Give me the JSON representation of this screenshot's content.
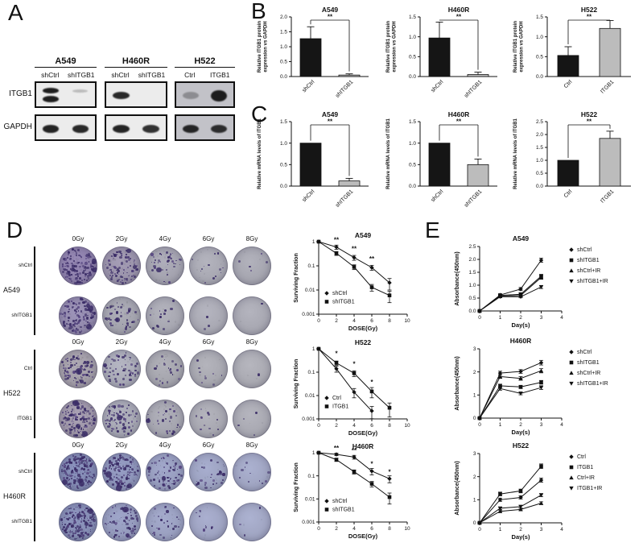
{
  "panels": {
    "a": "A",
    "b": "B",
    "c": "C",
    "d": "D",
    "e": "E"
  },
  "panel_a": {
    "row_labels": [
      "ITGB1",
      "GAPDH"
    ],
    "cell_lines": [
      {
        "name": "A549",
        "lanes": [
          "shCtrl",
          "shITGB1"
        ],
        "blot_bg": "#ececec",
        "itgb1_bands": [
          {
            "intensity": 0.95,
            "style": "double"
          },
          {
            "intensity": 0.22,
            "style": "thin"
          }
        ],
        "gapdh_bands": [
          {
            "intensity": 0.92
          },
          {
            "intensity": 0.9
          }
        ]
      },
      {
        "name": "H460R",
        "lanes": [
          "shCtrl",
          "shITGB1"
        ],
        "blot_bg": "#ececec",
        "itgb1_bands": [
          {
            "intensity": 0.9
          },
          {
            "intensity": 0.0
          }
        ],
        "gapdh_bands": [
          {
            "intensity": 0.92
          },
          {
            "intensity": 0.86
          }
        ]
      },
      {
        "name": "H522",
        "lanes": [
          "Ctrl",
          "ITGB1"
        ],
        "blot_bg": "#c2c2c8",
        "itgb1_bands": [
          {
            "intensity": 0.3
          },
          {
            "intensity": 0.95,
            "style": "thick"
          }
        ],
        "gapdh_bands": [
          {
            "intensity": 0.9
          },
          {
            "intensity": 0.86
          }
        ]
      }
    ]
  },
  "colony": {
    "dose_labels": [
      "0Gy",
      "2Gy",
      "4Gy",
      "6Gy",
      "8Gy"
    ],
    "colony_color": "#3a2c66",
    "groups": [
      {
        "cell_line": "A549",
        "rows": [
          {
            "label": "shCtrl",
            "base_colors": [
              "#8e81ab",
              "#9a93aa",
              "#a4a3af",
              "#a8a8b2",
              "#a6a6b0"
            ],
            "colony_counts": [
              130,
              85,
              40,
              14,
              5
            ]
          },
          {
            "label": "shITGB1",
            "base_colors": [
              "#938aad",
              "#a3a3ad",
              "#a7a7b1",
              "#a9a9b3",
              "#a8a8b2"
            ],
            "colony_counts": [
              110,
              45,
              14,
              3,
              1
            ]
          }
        ]
      },
      {
        "cell_line": "H522",
        "rows": [
          {
            "label": "Ctrl",
            "base_colors": [
              "#a39ea8",
              "#a9aab6",
              "#a5a5ad",
              "#a8a8b0",
              "#aaaab2"
            ],
            "colony_counts": [
              90,
              55,
              22,
              9,
              2
            ]
          },
          {
            "label": "ITGB1",
            "base_colors": [
              "#9f97a9",
              "#a6a7b3",
              "#a5a5af",
              "#a8a8b1",
              "#a9a9b2"
            ],
            "colony_counts": [
              120,
              70,
              30,
              12,
              4
            ]
          }
        ]
      },
      {
        "cell_line": "H460R",
        "rows": [
          {
            "label": "shCtrl",
            "base_colors": [
              "#8289b2",
              "#8d94b9",
              "#979dbe",
              "#9da3c1",
              "#a0a5c2"
            ],
            "colony_counts": [
              160,
              110,
              65,
              28,
              10
            ]
          },
          {
            "label": "shITGB1",
            "base_colors": [
              "#868db4",
              "#959bbd",
              "#9aa0c0",
              "#9fa4c2",
              "#a1a6c3"
            ],
            "colony_counts": [
              140,
              70,
              28,
              9,
              3
            ]
          }
        ]
      }
    ]
  },
  "chart_data": [
    {
      "id": "b-a549",
      "type": "bar",
      "title": "A549",
      "ylabel": [
        "Relative ITGB1 protein",
        "expression vs GAPDH"
      ],
      "ylim": [
        0,
        2.0
      ],
      "yticks": [
        0,
        0.5,
        1.0,
        1.5,
        2.0
      ],
      "ytick_labels": [
        "0.0",
        "0.5",
        "1.0",
        "1.5",
        "2.0"
      ],
      "categories": [
        "shCtrl",
        "shITGB1"
      ],
      "values": [
        1.27,
        0.05
      ],
      "errors": [
        0.4,
        0.04
      ],
      "bar_colors": [
        "#151515",
        "#bcbcbc"
      ],
      "sig": "**"
    },
    {
      "id": "b-h460r",
      "type": "bar",
      "title": "H460R",
      "ylabel": [
        "Relative ITGB1 protein",
        "expression vs GAPDH"
      ],
      "ylim": [
        0,
        1.5
      ],
      "yticks": [
        0,
        0.5,
        1.0,
        1.5
      ],
      "ytick_labels": [
        "0.0",
        "0.5",
        "1.0",
        "1.5"
      ],
      "categories": [
        "shCtrl",
        "shITGB1"
      ],
      "values": [
        0.97,
        0.05
      ],
      "errors": [
        0.4,
        0.06
      ],
      "bar_colors": [
        "#151515",
        "#bcbcbc"
      ],
      "sig": "**"
    },
    {
      "id": "b-h522",
      "type": "bar",
      "title": "H522",
      "ylabel": [
        "Relative ITGB1 protein",
        "expression vs GAPDH"
      ],
      "ylim": [
        0,
        1.5
      ],
      "yticks": [
        0,
        0.5,
        1.0,
        1.5
      ],
      "ytick_labels": [
        "0.0",
        "0.5",
        "1.0",
        "1.5"
      ],
      "categories": [
        "Ctrl",
        "ITGB1"
      ],
      "values": [
        0.53,
        1.21
      ],
      "errors": [
        0.22,
        0.2
      ],
      "bar_colors": [
        "#151515",
        "#bcbcbc"
      ],
      "sig": "**"
    },
    {
      "id": "c-a549",
      "type": "bar",
      "title": "A549",
      "ylabel": [
        "Relative mRNA levels of ITGB1"
      ],
      "ylim": [
        0,
        1.5
      ],
      "yticks": [
        0,
        0.5,
        1.0,
        1.5
      ],
      "ytick_labels": [
        "0.0",
        "0.5",
        "1.0",
        "1.5"
      ],
      "categories": [
        "shCtrl",
        "shITGB1"
      ],
      "values": [
        1.0,
        0.12
      ],
      "errors": [
        0,
        0.06
      ],
      "bar_colors": [
        "#151515",
        "#bcbcbc"
      ],
      "sig": "**"
    },
    {
      "id": "c-h460r",
      "type": "bar",
      "title": "H460R",
      "ylabel": [
        "Relative mRNA levels of ITGB1"
      ],
      "ylim": [
        0,
        1.5
      ],
      "yticks": [
        0,
        0.5,
        1.0,
        1.5
      ],
      "ytick_labels": [
        "0.0",
        "0.5",
        "1.0",
        "1.5"
      ],
      "categories": [
        "shCtrl",
        "shITGB1"
      ],
      "values": [
        1.0,
        0.5
      ],
      "errors": [
        0,
        0.13
      ],
      "bar_colors": [
        "#151515",
        "#bcbcbc"
      ],
      "sig": "**"
    },
    {
      "id": "c-h522",
      "type": "bar",
      "title": "H522",
      "ylabel": [
        "Relative mRNA levels of ITGB1"
      ],
      "ylim": [
        0,
        2.5
      ],
      "yticks": [
        0,
        0.5,
        1.0,
        1.5,
        2.0,
        2.5
      ],
      "ytick_labels": [
        "0.0",
        "0.5",
        "1.0",
        "1.5",
        "2.0",
        "2.5"
      ],
      "categories": [
        "Ctrl",
        "ITGB1"
      ],
      "values": [
        1.0,
        1.85
      ],
      "errors": [
        0,
        0.28
      ],
      "bar_colors": [
        "#151515",
        "#bcbcbc"
      ],
      "sig": "**"
    },
    {
      "id": "d-a549",
      "type": "line",
      "title": "A549",
      "ylabel": "Surviving Fraction",
      "xlabel": "DOSE(Gy)",
      "ylog": true,
      "xlim": [
        0,
        10
      ],
      "xticks": [
        0,
        2,
        4,
        6,
        8,
        10
      ],
      "ylim": [
        0.001,
        1
      ],
      "yticks": [
        1,
        0.1,
        0.01,
        0.001
      ],
      "ytick_labels": [
        "1",
        "0.1",
        "0.01",
        "0.001"
      ],
      "x": [
        0,
        2,
        4,
        6,
        8
      ],
      "legend_pos": "inside",
      "series": [
        {
          "name": "shCtrl",
          "marker": "diamond",
          "values": [
            1,
            0.6,
            0.22,
            0.085,
            0.02
          ],
          "errors": [
            0,
            0.12,
            0.05,
            0.02,
            0.01
          ]
        },
        {
          "name": "shITGB1",
          "marker": "square",
          "values": [
            1,
            0.33,
            0.09,
            0.013,
            0.006
          ],
          "errors": [
            0,
            0.06,
            0.02,
            0.004,
            0.003
          ]
        }
      ],
      "sig": [
        {
          "x": 2,
          "y": 0.95,
          "label": "**"
        },
        {
          "x": 4,
          "y": 0.42,
          "label": "**"
        },
        {
          "x": 6,
          "y": 0.16,
          "label": "**"
        }
      ]
    },
    {
      "id": "d-h522",
      "type": "line",
      "title": "H522",
      "ylabel": "Surviving Fraction",
      "xlabel": "DOSE(Gy)",
      "ylog": true,
      "xlim": [
        0,
        10
      ],
      "xticks": [
        0,
        2,
        4,
        6,
        8,
        10
      ],
      "ylim": [
        0.001,
        1
      ],
      "yticks": [
        1,
        0.1,
        0.01,
        0.001
      ],
      "ytick_labels": [
        "1",
        "0.1",
        "0.01",
        "0.001"
      ],
      "x": [
        0,
        2,
        4,
        6,
        8
      ],
      "legend_pos": "inside",
      "series": [
        {
          "name": "Ctrl",
          "marker": "diamond",
          "values": [
            1,
            0.14,
            0.014,
            0.0022,
            null
          ],
          "errors": [
            0,
            0.04,
            0.006,
            0.0012,
            null
          ]
        },
        {
          "name": "ITGB1",
          "marker": "square",
          "values": [
            1,
            0.25,
            0.09,
            0.015,
            0.003
          ],
          "errors": [
            0,
            0.05,
            0.025,
            0.007,
            0.0018
          ]
        }
      ],
      "sig": [
        {
          "x": 2,
          "y": 0.5,
          "label": "*"
        },
        {
          "x": 4,
          "y": 0.18,
          "label": "*"
        },
        {
          "x": 6,
          "y": 0.03,
          "label": "*"
        }
      ]
    },
    {
      "id": "d-h460r",
      "type": "line",
      "title": "H460R",
      "ylabel": "Surviving Fraction",
      "xlabel": "DOSE(Gy)",
      "ylog": true,
      "xlim": [
        0,
        10
      ],
      "xticks": [
        0,
        2,
        4,
        6,
        8,
        10
      ],
      "ylim": [
        0.001,
        1
      ],
      "yticks": [
        1,
        0.1,
        0.01,
        0.001
      ],
      "ytick_labels": [
        "1",
        "0.1",
        "0.01",
        "0.001"
      ],
      "x": [
        0,
        2,
        4,
        6,
        8
      ],
      "legend_pos": "inside",
      "series": [
        {
          "name": "shCtrl",
          "marker": "diamond",
          "values": [
            1,
            0.85,
            0.65,
            0.16,
            0.075
          ],
          "errors": [
            0,
            0.1,
            0.12,
            0.05,
            0.025
          ]
        },
        {
          "name": "shITGB1",
          "marker": "square",
          "values": [
            1,
            0.5,
            0.15,
            0.045,
            0.012
          ],
          "errors": [
            0,
            0.08,
            0.03,
            0.012,
            0.006
          ]
        }
      ],
      "sig": [
        {
          "x": 2,
          "y": 1.25,
          "label": "**"
        },
        {
          "x": 4,
          "y": 1.0,
          "label": "**"
        },
        {
          "x": 6,
          "y": 0.27,
          "label": "*"
        },
        {
          "x": 8,
          "y": 0.12,
          "label": "*"
        }
      ]
    },
    {
      "id": "e-a549",
      "type": "line",
      "title": "A549",
      "ylabel": "Absorbance(450nm)",
      "xlabel": "Day(s)",
      "ylog": false,
      "xlim": [
        0,
        4
      ],
      "xticks": [
        0,
        1,
        2,
        3,
        4
      ],
      "ylim": [
        0,
        2.5
      ],
      "yticks": [
        0,
        0.5,
        1.0,
        1.5,
        2.0,
        2.5
      ],
      "ytick_labels": [
        "0.0",
        "0.5",
        "1.0",
        "1.5",
        "2.0",
        "2.5"
      ],
      "x": [
        0,
        1,
        2,
        3
      ],
      "legend_pos": "right",
      "series": [
        {
          "name": "shCtrl",
          "marker": "diamond",
          "values": [
            0,
            0.62,
            0.85,
            1.97
          ],
          "errors": [
            0,
            0.05,
            0.06,
            0.08
          ]
        },
        {
          "name": "shITGB1",
          "marker": "square",
          "values": [
            0,
            0.6,
            0.65,
            1.35
          ],
          "errors": [
            0,
            0.05,
            0.05,
            0.07
          ]
        },
        {
          "name": "shCtrl+IR",
          "marker": "tri-up",
          "values": [
            0,
            0.58,
            0.6,
            1.3
          ],
          "errors": [
            0,
            0.04,
            0.05,
            0.07
          ]
        },
        {
          "name": "shITGB1+IR",
          "marker": "tri-down",
          "values": [
            0,
            0.55,
            0.55,
            0.93
          ],
          "errors": [
            0,
            0.04,
            0.04,
            0.06
          ]
        }
      ],
      "sig": []
    },
    {
      "id": "e-h460r",
      "type": "line",
      "title": "H460R",
      "ylabel": "Absorbance(450nm)",
      "xlabel": "Day(s)",
      "ylog": false,
      "xlim": [
        0,
        4
      ],
      "xticks": [
        0,
        1,
        2,
        3,
        4
      ],
      "ylim": [
        0,
        3
      ],
      "yticks": [
        0,
        1,
        2,
        3
      ],
      "ytick_labels": [
        "0",
        "1",
        "2",
        "3"
      ],
      "x": [
        0,
        1,
        2,
        3
      ],
      "legend_pos": "right",
      "series": [
        {
          "name": "shCtrl",
          "marker": "diamond",
          "values": [
            0,
            1.95,
            2.02,
            2.4
          ],
          "errors": [
            0,
            0.08,
            0.08,
            0.1
          ]
        },
        {
          "name": "shITGB1",
          "marker": "square",
          "values": [
            0,
            1.4,
            1.35,
            1.55
          ],
          "errors": [
            0,
            0.07,
            0.07,
            0.08
          ]
        },
        {
          "name": "shCtrl+IR",
          "marker": "tri-up",
          "values": [
            0,
            1.8,
            1.72,
            2.05
          ],
          "errors": [
            0,
            0.08,
            0.08,
            0.09
          ]
        },
        {
          "name": "shITGB1+IR",
          "marker": "tri-down",
          "values": [
            0,
            1.28,
            1.07,
            1.32
          ],
          "errors": [
            0,
            0.07,
            0.06,
            0.08
          ]
        }
      ],
      "sig": []
    },
    {
      "id": "e-h522",
      "type": "line",
      "title": "H522",
      "ylabel": "Absorbance(450nm)",
      "xlabel": "Day(s)",
      "ylog": false,
      "xlim": [
        0,
        4
      ],
      "xticks": [
        0,
        1,
        2,
        3,
        4
      ],
      "ylim": [
        0,
        3
      ],
      "yticks": [
        0,
        1,
        2,
        3
      ],
      "ytick_labels": [
        "0",
        "1",
        "2",
        "3"
      ],
      "x": [
        0,
        1,
        2,
        3
      ],
      "legend_pos": "right",
      "series": [
        {
          "name": "Ctrl",
          "marker": "diamond",
          "values": [
            0,
            1.0,
            1.1,
            1.85
          ],
          "errors": [
            0,
            0.07,
            0.07,
            0.09
          ]
        },
        {
          "name": "ITGB1",
          "marker": "square",
          "values": [
            0,
            1.25,
            1.38,
            2.45
          ],
          "errors": [
            0,
            0.08,
            0.08,
            0.1
          ]
        },
        {
          "name": "Ctrl+IR",
          "marker": "tri-up",
          "values": [
            0,
            0.5,
            0.58,
            0.85
          ],
          "errors": [
            0,
            0.05,
            0.05,
            0.06
          ]
        },
        {
          "name": "ITGB1+IR",
          "marker": "tri-down",
          "values": [
            0,
            0.63,
            0.7,
            1.2
          ],
          "errors": [
            0,
            0.05,
            0.06,
            0.07
          ]
        }
      ],
      "sig": []
    }
  ]
}
